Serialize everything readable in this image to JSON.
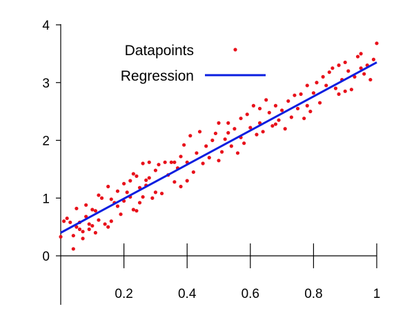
{
  "chart_data": {
    "type": "scatter",
    "title": "",
    "xlabel": "",
    "ylabel": "",
    "xlim": [
      0,
      1
    ],
    "ylim": [
      -0.85,
      4
    ],
    "x_ticks": [
      {
        "value": 0.2,
        "label": "0.2"
      },
      {
        "value": 0.4,
        "label": "0.4"
      },
      {
        "value": 0.6,
        "label": "0.6"
      },
      {
        "value": 0.8,
        "label": "0.8"
      },
      {
        "value": 1.0,
        "label": "1"
      }
    ],
    "y_ticks": [
      {
        "value": 0,
        "label": "0"
      },
      {
        "value": 1,
        "label": "1"
      },
      {
        "value": 2,
        "label": "2"
      },
      {
        "value": 3,
        "label": "3"
      },
      {
        "value": 4,
        "label": "4"
      }
    ],
    "grid": false,
    "legend_position": "top-left",
    "series": [
      {
        "name": "Datapoints",
        "kind": "scatter",
        "color": "#e8111b",
        "points": [
          [
            0.0,
            0.33
          ],
          [
            0.01,
            0.6
          ],
          [
            0.02,
            0.65
          ],
          [
            0.03,
            0.58
          ],
          [
            0.04,
            0.12
          ],
          [
            0.04,
            0.35
          ],
          [
            0.05,
            0.5
          ],
          [
            0.05,
            0.82
          ],
          [
            0.06,
            0.46
          ],
          [
            0.06,
            0.58
          ],
          [
            0.07,
            0.42
          ],
          [
            0.07,
            0.3
          ],
          [
            0.08,
            0.88
          ],
          [
            0.08,
            0.68
          ],
          [
            0.09,
            0.46
          ],
          [
            0.09,
            0.55
          ],
          [
            0.1,
            0.52
          ],
          [
            0.1,
            0.8
          ],
          [
            0.11,
            0.78
          ],
          [
            0.11,
            0.4
          ],
          [
            0.12,
            1.05
          ],
          [
            0.12,
            0.62
          ],
          [
            0.13,
            1.0
          ],
          [
            0.14,
            0.55
          ],
          [
            0.15,
            1.2
          ],
          [
            0.15,
            0.5
          ],
          [
            0.16,
            0.6
          ],
          [
            0.16,
            0.98
          ],
          [
            0.17,
            0.92
          ],
          [
            0.18,
            1.12
          ],
          [
            0.18,
            0.86
          ],
          [
            0.19,
            0.72
          ],
          [
            0.2,
            1.25
          ],
          [
            0.2,
            0.95
          ],
          [
            0.21,
            1.1
          ],
          [
            0.22,
            1.3
          ],
          [
            0.22,
            1.02
          ],
          [
            0.23,
            0.8
          ],
          [
            0.23,
            1.42
          ],
          [
            0.24,
            0.78
          ],
          [
            0.24,
            1.38
          ],
          [
            0.25,
            1.18
          ],
          [
            0.25,
            0.92
          ],
          [
            0.26,
            1.6
          ],
          [
            0.26,
            1.02
          ],
          [
            0.27,
            1.22
          ],
          [
            0.28,
            1.35
          ],
          [
            0.28,
            1.62
          ],
          [
            0.29,
            1.0
          ],
          [
            0.3,
            1.48
          ],
          [
            0.3,
            1.1
          ],
          [
            0.31,
            1.58
          ],
          [
            0.32,
            1.08
          ],
          [
            0.33,
            1.62
          ],
          [
            0.34,
            1.4
          ],
          [
            0.35,
            1.62
          ],
          [
            0.36,
            1.28
          ],
          [
            0.37,
            1.52
          ],
          [
            0.38,
            1.72
          ],
          [
            0.38,
            1.2
          ],
          [
            0.39,
            1.92
          ],
          [
            0.4,
            1.62
          ],
          [
            0.4,
            1.3
          ],
          [
            0.41,
            2.08
          ],
          [
            0.42,
            1.45
          ],
          [
            0.43,
            1.78
          ],
          [
            0.44,
            2.15
          ],
          [
            0.45,
            1.6
          ],
          [
            0.46,
            1.9
          ],
          [
            0.47,
            1.7
          ],
          [
            0.48,
            2.0
          ],
          [
            0.49,
            2.12
          ],
          [
            0.5,
            1.65
          ],
          [
            0.5,
            2.3
          ],
          [
            0.51,
            1.8
          ],
          [
            0.52,
            2.02
          ],
          [
            0.53,
            2.3
          ],
          [
            0.54,
            1.9
          ],
          [
            0.55,
            2.2
          ],
          [
            0.56,
            1.78
          ],
          [
            0.57,
            2.38
          ],
          [
            0.57,
            2.05
          ],
          [
            0.58,
            1.95
          ],
          [
            0.59,
            2.45
          ],
          [
            0.6,
            2.22
          ],
          [
            0.61,
            2.6
          ],
          [
            0.62,
            2.1
          ],
          [
            0.63,
            2.55
          ],
          [
            0.63,
            2.3
          ],
          [
            0.64,
            2.15
          ],
          [
            0.65,
            2.7
          ],
          [
            0.66,
            2.48
          ],
          [
            0.67,
            2.25
          ],
          [
            0.68,
            2.6
          ],
          [
            0.69,
            2.35
          ],
          [
            0.7,
            2.52
          ],
          [
            0.71,
            2.2
          ],
          [
            0.72,
            2.68
          ],
          [
            0.73,
            2.4
          ],
          [
            0.74,
            2.78
          ],
          [
            0.75,
            2.55
          ],
          [
            0.76,
            2.8
          ],
          [
            0.77,
            2.38
          ],
          [
            0.78,
            2.95
          ],
          [
            0.78,
            2.6
          ],
          [
            0.79,
            2.5
          ],
          [
            0.8,
            2.82
          ],
          [
            0.81,
            3.0
          ],
          [
            0.82,
            2.65
          ],
          [
            0.83,
            3.1
          ],
          [
            0.84,
            2.95
          ],
          [
            0.85,
            3.18
          ],
          [
            0.86,
            3.25
          ],
          [
            0.87,
            2.9
          ],
          [
            0.88,
            3.3
          ],
          [
            0.88,
            2.8
          ],
          [
            0.89,
            3.05
          ],
          [
            0.9,
            3.35
          ],
          [
            0.9,
            2.85
          ],
          [
            0.91,
            3.2
          ],
          [
            0.92,
            2.88
          ],
          [
            0.93,
            3.1
          ],
          [
            0.94,
            3.45
          ],
          [
            0.95,
            3.25
          ],
          [
            0.95,
            3.5
          ],
          [
            0.96,
            3.15
          ],
          [
            0.97,
            3.3
          ],
          [
            0.98,
            3.05
          ],
          [
            0.99,
            3.4
          ],
          [
            1.0,
            3.68
          ],
          [
            0.53,
            2.13
          ],
          [
            0.36,
            1.62
          ],
          [
            0.68,
            2.28
          ],
          [
            0.27,
            1.31
          ]
        ]
      },
      {
        "name": "Regression",
        "kind": "line",
        "color": "#0a1ee0",
        "x": [
          0,
          1
        ],
        "y": [
          0.4,
          3.35
        ]
      }
    ]
  }
}
